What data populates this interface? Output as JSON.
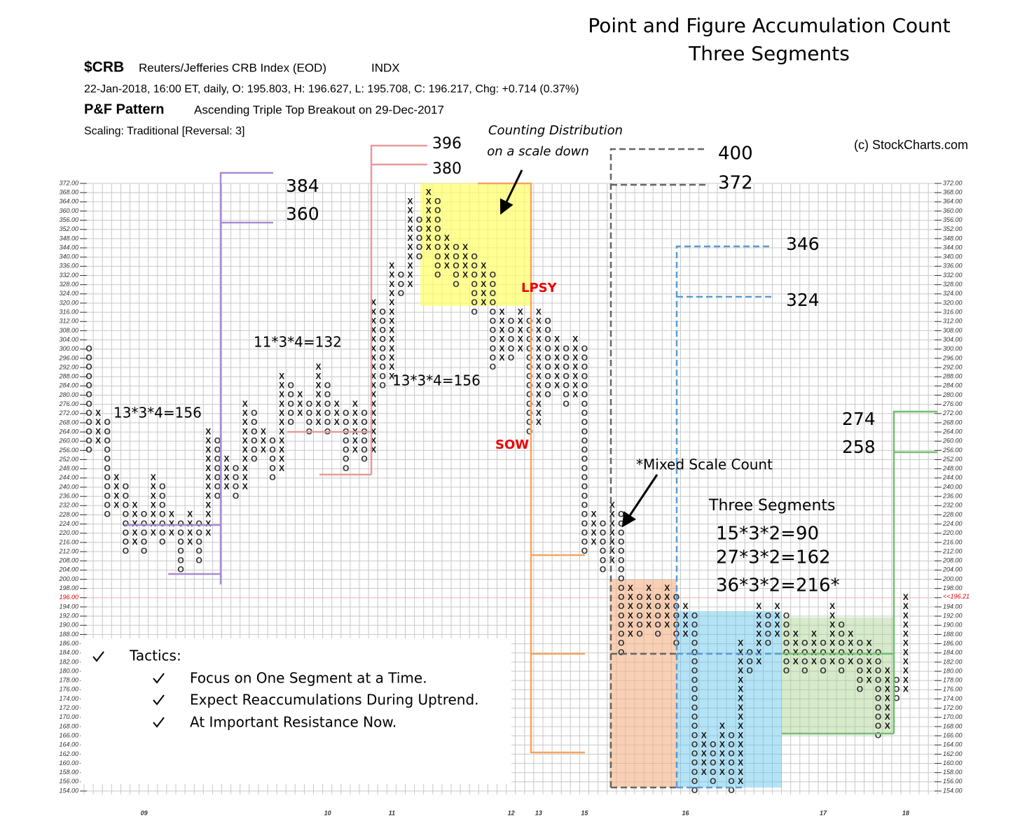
{
  "chart_data": {
    "type": "pnf",
    "title": "Point and Figure Accumulation Count",
    "subtitle": "Three Segments",
    "header": {
      "symbol": "$CRB",
      "name": "Reuters/Jefferies CRB Index (EOD)",
      "exchange": "INDX",
      "quote": "22-Jan-2018, 16:00 ET, daily, O: 195.803, H: 196.627, L: 195.708, C: 196.217, Chg: +0.714 (0.37%)",
      "pattern_label": "P&F Pattern",
      "pattern": "Ascending Triple Top Breakout on 29-Dec-2017",
      "scaling": "Scaling: Traditional [Reversal: 3]",
      "copyright": "(c) StockCharts.com"
    },
    "ylim": [
      154,
      372
    ],
    "yticks": [
      {
        "value": 154,
        "label": "154.00"
      },
      {
        "value": 156,
        "label": "156.00"
      },
      {
        "value": 158,
        "label": "158.00"
      },
      {
        "value": 160,
        "label": "160.00"
      },
      {
        "value": 162,
        "label": "162.00"
      },
      {
        "value": 164,
        "label": "164.00"
      },
      {
        "value": 166,
        "label": "166.00"
      },
      {
        "value": 168,
        "label": "168.00"
      },
      {
        "value": 170,
        "label": "170.00"
      },
      {
        "value": 172,
        "label": "172.00"
      },
      {
        "value": 174,
        "label": "174.00"
      },
      {
        "value": 176,
        "label": "176.00"
      },
      {
        "value": 178,
        "label": "178.00"
      },
      {
        "value": 180,
        "label": "180.00"
      },
      {
        "value": 182,
        "label": "182.00"
      },
      {
        "value": 184,
        "label": "184.00"
      },
      {
        "value": 186,
        "label": "186.00"
      },
      {
        "value": 188,
        "label": "188.00"
      },
      {
        "value": 190,
        "label": "190.00"
      },
      {
        "value": 192,
        "label": "192.00"
      },
      {
        "value": 194,
        "label": "194.00"
      },
      {
        "value": 196,
        "label": "196.00"
      },
      {
        "value": 198,
        "label": "198.00"
      },
      {
        "value": 200,
        "label": "200.00"
      },
      {
        "value": 204,
        "label": "204.00"
      },
      {
        "value": 208,
        "label": "208.00"
      },
      {
        "value": 212,
        "label": "212.00"
      },
      {
        "value": 216,
        "label": "216.00"
      },
      {
        "value": 220,
        "label": "220.00"
      },
      {
        "value": 224,
        "label": "224.00"
      },
      {
        "value": 228,
        "label": "228.00"
      },
      {
        "value": 232,
        "label": "232.00"
      },
      {
        "value": 236,
        "label": "236.00"
      },
      {
        "value": 240,
        "label": "240.00"
      },
      {
        "value": 244,
        "label": "244.00"
      },
      {
        "value": 248,
        "label": "248.00"
      },
      {
        "value": 252,
        "label": "252.00"
      },
      {
        "value": 256,
        "label": "256.00"
      },
      {
        "value": 260,
        "label": "260.00"
      },
      {
        "value": 264,
        "label": "264.00"
      },
      {
        "value": 268,
        "label": "268.00"
      },
      {
        "value": 272,
        "label": "272.00"
      },
      {
        "value": 276,
        "label": "276.00"
      },
      {
        "value": 280,
        "label": "280.00"
      },
      {
        "value": 284,
        "label": "284.00"
      },
      {
        "value": 288,
        "label": "288.00"
      },
      {
        "value": 292,
        "label": "292.00"
      },
      {
        "value": 296,
        "label": "296.00"
      },
      {
        "value": 300,
        "label": "300.00"
      },
      {
        "value": 304,
        "label": "304.00"
      },
      {
        "value": 308,
        "label": "308.00"
      },
      {
        "value": 312,
        "label": "312.00"
      },
      {
        "value": 316,
        "label": "316.00"
      },
      {
        "value": 320,
        "label": "320.00"
      },
      {
        "value": 324,
        "label": "324.00"
      },
      {
        "value": 328,
        "label": "328.00"
      },
      {
        "value": 332,
        "label": "332.00"
      },
      {
        "value": 336,
        "label": "336.00"
      },
      {
        "value": 340,
        "label": "340.00"
      },
      {
        "value": 344,
        "label": "344.00"
      },
      {
        "value": 348,
        "label": "348.00"
      },
      {
        "value": 352,
        "label": "352.00"
      },
      {
        "value": 356,
        "label": "356.00"
      },
      {
        "value": 360,
        "label": "360.00"
      },
      {
        "value": 364,
        "label": "364.00"
      },
      {
        "value": 368,
        "label": "368.00"
      },
      {
        "value": 372,
        "label": "372.00"
      }
    ],
    "xticks": [
      {
        "value": 6,
        "label": "09"
      },
      {
        "value": 26,
        "label": "10"
      },
      {
        "value": 33,
        "label": "11"
      },
      {
        "value": 46,
        "label": "12"
      },
      {
        "value": 49,
        "label": "13"
      },
      {
        "value": 54,
        "label": "15"
      },
      {
        "value": 65,
        "label": "16"
      },
      {
        "value": 80,
        "label": "17"
      },
      {
        "value": 89,
        "label": "18"
      }
    ],
    "last_price": 196.21,
    "last_price_label": "<<196.21",
    "grid": true,
    "columns": [
      {
        "kind": "O",
        "low": 256,
        "high": 300
      },
      {
        "kind": "X",
        "low": 260,
        "high": 272
      },
      {
        "kind": "O",
        "low": 228,
        "high": 268
      },
      {
        "kind": "X",
        "low": 232,
        "high": 244
      },
      {
        "kind": "O",
        "low": 212,
        "high": 240
      },
      {
        "kind": "X",
        "low": 216,
        "high": 232
      },
      {
        "kind": "O",
        "low": 212,
        "high": 228
      },
      {
        "kind": "X",
        "low": 220,
        "high": 244
      },
      {
        "kind": "O",
        "low": 216,
        "high": 240
      },
      {
        "kind": "X",
        "low": 220,
        "high": 228
      },
      {
        "kind": "O",
        "low": 204,
        "high": 224
      },
      {
        "kind": "X",
        "low": 216,
        "high": 228
      },
      {
        "kind": "O",
        "low": 208,
        "high": 224
      },
      {
        "kind": "X",
        "low": 220,
        "high": 264
      },
      {
        "kind": "O",
        "low": 236,
        "high": 260
      },
      {
        "kind": "X",
        "low": 240,
        "high": 252
      },
      {
        "kind": "O",
        "low": 236,
        "high": 248
      },
      {
        "kind": "X",
        "low": 240,
        "high": 276
      },
      {
        "kind": "O",
        "low": 252,
        "high": 272
      },
      {
        "kind": "X",
        "low": 256,
        "high": 264
      },
      {
        "kind": "O",
        "low": 244,
        "high": 260
      },
      {
        "kind": "X",
        "low": 248,
        "high": 288
      },
      {
        "kind": "O",
        "low": 268,
        "high": 284
      },
      {
        "kind": "X",
        "low": 272,
        "high": 280
      },
      {
        "kind": "O",
        "low": 264,
        "high": 276
      },
      {
        "kind": "X",
        "low": 268,
        "high": 292
      },
      {
        "kind": "O",
        "low": 264,
        "high": 284
      },
      {
        "kind": "X",
        "low": 268,
        "high": 276
      },
      {
        "kind": "O",
        "low": 248,
        "high": 272
      },
      {
        "kind": "X",
        "low": 256,
        "high": 276
      },
      {
        "kind": "O",
        "low": 252,
        "high": 272
      },
      {
        "kind": "X",
        "low": 256,
        "high": 320
      },
      {
        "kind": "O",
        "low": 284,
        "high": 316
      },
      {
        "kind": "X",
        "low": 288,
        "high": 336
      },
      {
        "kind": "O",
        "low": 324,
        "high": 332
      },
      {
        "kind": "X",
        "low": 328,
        "high": 364
      },
      {
        "kind": "O",
        "low": 340,
        "high": 356
      },
      {
        "kind": "X",
        "low": 344,
        "high": 368
      },
      {
        "kind": "O",
        "low": 332,
        "high": 364
      },
      {
        "kind": "X",
        "low": 336,
        "high": 348
      },
      {
        "kind": "O",
        "low": 328,
        "high": 344
      },
      {
        "kind": "X",
        "low": 332,
        "high": 344
      },
      {
        "kind": "O",
        "low": 316,
        "high": 340
      },
      {
        "kind": "X",
        "low": 320,
        "high": 336
      },
      {
        "kind": "O",
        "low": 292,
        "high": 332
      },
      {
        "kind": "X",
        "low": 296,
        "high": 316
      },
      {
        "kind": "O",
        "low": 296,
        "high": 312
      },
      {
        "kind": "X",
        "low": 300,
        "high": 316
      },
      {
        "kind": "O",
        "low": 264,
        "high": 312
      },
      {
        "kind": "X",
        "low": 268,
        "high": 316
      },
      {
        "kind": "O",
        "low": 280,
        "high": 312
      },
      {
        "kind": "X",
        "low": 284,
        "high": 304
      },
      {
        "kind": "O",
        "low": 276,
        "high": 300
      },
      {
        "kind": "X",
        "low": 280,
        "high": 304
      },
      {
        "kind": "O",
        "low": 212,
        "high": 300
      },
      {
        "kind": "X",
        "low": 216,
        "high": 228
      },
      {
        "kind": "O",
        "low": 204,
        "high": 224
      },
      {
        "kind": "X",
        "low": 208,
        "high": 232
      },
      {
        "kind": "O",
        "low": 184,
        "high": 228
      },
      {
        "kind": "X",
        "low": 188,
        "high": 198
      },
      {
        "kind": "O",
        "low": 188,
        "high": 196
      },
      {
        "kind": "X",
        "low": 190,
        "high": 198
      },
      {
        "kind": "O",
        "low": 188,
        "high": 196
      },
      {
        "kind": "X",
        "low": 190,
        "high": 198
      },
      {
        "kind": "O",
        "low": 186,
        "high": 196
      },
      {
        "kind": "X",
        "low": 188,
        "high": 194
      },
      {
        "kind": "O",
        "low": 154,
        "high": 192
      },
      {
        "kind": "X",
        "low": 158,
        "high": 166
      },
      {
        "kind": "O",
        "low": 156,
        "high": 164
      },
      {
        "kind": "X",
        "low": 158,
        "high": 168
      },
      {
        "kind": "O",
        "low": 154,
        "high": 166
      },
      {
        "kind": "X",
        "low": 156,
        "high": 186
      },
      {
        "kind": "O",
        "low": 180,
        "high": 184
      },
      {
        "kind": "X",
        "low": 182,
        "high": 194
      },
      {
        "kind": "O",
        "low": 186,
        "high": 192
      },
      {
        "kind": "X",
        "low": 188,
        "high": 194
      },
      {
        "kind": "O",
        "low": 180,
        "high": 192
      },
      {
        "kind": "X",
        "low": 182,
        "high": 188
      },
      {
        "kind": "O",
        "low": 180,
        "high": 186
      },
      {
        "kind": "X",
        "low": 182,
        "high": 188
      },
      {
        "kind": "O",
        "low": 180,
        "high": 186
      },
      {
        "kind": "X",
        "low": 182,
        "high": 194
      },
      {
        "kind": "O",
        "low": 180,
        "high": 190
      },
      {
        "kind": "X",
        "low": 182,
        "high": 188
      },
      {
        "kind": "O",
        "low": 176,
        "high": 186
      },
      {
        "kind": "X",
        "low": 178,
        "high": 186
      },
      {
        "kind": "O",
        "low": 166,
        "high": 184
      },
      {
        "kind": "X",
        "low": 168,
        "high": 180
      },
      {
        "kind": "O",
        "low": 174,
        "high": 178
      },
      {
        "kind": "X",
        "low": 176,
        "high": 196
      }
    ],
    "annotations": {
      "counts": [
        "13*3*4=156",
        "11*3*4=132",
        "13*3*4=156"
      ],
      "targets": [
        384,
        360,
        396,
        380,
        400,
        372,
        346,
        324,
        274,
        258
      ],
      "distribution_note": [
        "Counting Distribution",
        "on a scale down"
      ],
      "lpsy": "LPSY",
      "sow": "SOW",
      "mixed_note": "*Mixed Scale Count",
      "segments_title": "Three Segments",
      "segments": [
        "15*3*2=90",
        "27*3*2=162",
        "36*3*2=216*"
      ]
    },
    "tactics": {
      "heading": "Tactics:",
      "items": [
        "Focus on One Segment at a Time.",
        "Expect Reaccumulations During Uptrend.",
        "At Important Resistance Now."
      ]
    }
  }
}
